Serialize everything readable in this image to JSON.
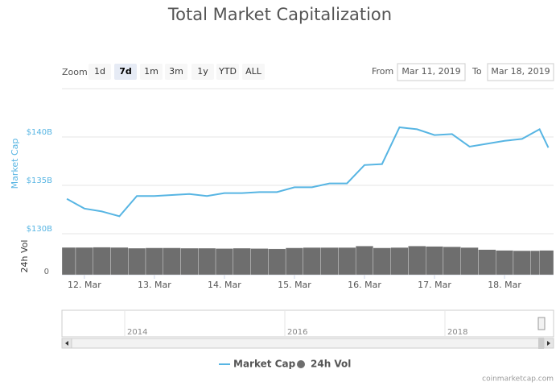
{
  "chart_data": {
    "type": "line",
    "title": "Total Market Capitalization",
    "ylabel": "Market Cap",
    "y2label": "24h Vol",
    "x": [
      11.75,
      12,
      12.25,
      12.5,
      12.75,
      13,
      13.25,
      13.5,
      13.75,
      14,
      14.25,
      14.5,
      14.75,
      15,
      15.25,
      15.5,
      15.75,
      16,
      16.25,
      16.5,
      16.75,
      17,
      17.25,
      17.5,
      17.75,
      18,
      18.25,
      18.5,
      18.625
    ],
    "xlim": [
      11.68,
      18.7
    ],
    "xticks": [
      {
        "value": 12,
        "label": "12. Mar"
      },
      {
        "value": 13,
        "label": "13. Mar"
      },
      {
        "value": 14,
        "label": "14. Mar"
      },
      {
        "value": 15,
        "label": "15. Mar"
      },
      {
        "value": 16,
        "label": "16. Mar"
      },
      {
        "value": 17,
        "label": "17. Mar"
      },
      {
        "value": 18,
        "label": "18. Mar"
      }
    ],
    "ylim": [
      130,
      145
    ],
    "yticks": [
      {
        "value": 130,
        "label": "$130B"
      },
      {
        "value": 135,
        "label": "$135B"
      },
      {
        "value": 140,
        "label": "$140B"
      }
    ],
    "y2lim": [
      0,
      50
    ],
    "y2ticks": [
      0
    ],
    "grid": true,
    "series": [
      {
        "name": "Market Cap",
        "type": "line",
        "color": "#57b5e3",
        "values": [
          133.6,
          132.6,
          132.3,
          131.8,
          133.9,
          133.9,
          134.0,
          134.1,
          133.9,
          134.2,
          134.2,
          134.3,
          134.3,
          134.8,
          134.8,
          135.2,
          135.2,
          137.1,
          137.2,
          141.0,
          140.8,
          140.2,
          140.3,
          139.0,
          139.3,
          139.6,
          139.8,
          140.8,
          138.9
        ]
      },
      {
        "name": "24h Vol",
        "type": "column",
        "axis": "y2",
        "color": "#6e6e6e",
        "values": [
          38.6,
          38.6,
          38.9,
          38.6,
          37.5,
          38,
          38,
          37.5,
          37.5,
          37,
          37.5,
          37,
          36.5,
          38,
          38.5,
          38.5,
          38.5,
          40.5,
          38,
          38.5,
          40.5,
          40,
          39.5,
          38.5,
          35.5,
          34.5,
          34,
          34,
          34.5
        ]
      }
    ]
  },
  "range_selector": {
    "zoom_label": "Zoom",
    "buttons": [
      "1d",
      "7d",
      "1m",
      "3m",
      "1y",
      "YTD",
      "ALL"
    ],
    "from_label": "From",
    "from": "Mar 11, 2019",
    "to_label": "To",
    "to": "Mar 18, 2019"
  },
  "navigator": {
    "labels": [
      "2014",
      "2016",
      "2018"
    ]
  },
  "credit": "coinmarketcap.com"
}
